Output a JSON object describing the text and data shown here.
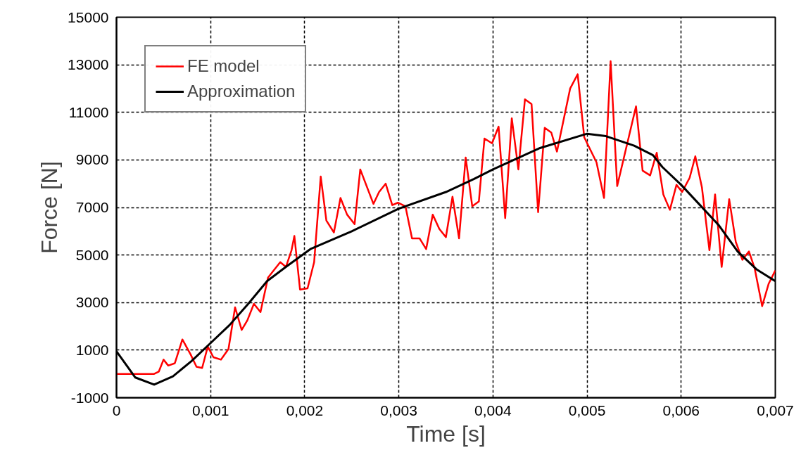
{
  "chart_data": {
    "type": "line",
    "xlabel": "Time [s]",
    "ylabel": "Force [N]",
    "xlim": [
      0,
      0.007
    ],
    "ylim": [
      -1000,
      15000
    ],
    "xticks": [
      0,
      {
        "value": 0.001,
        "label": "0,001"
      },
      {
        "value": 0.002,
        "label": "0,002"
      },
      {
        "value": 0.003,
        "label": "0,003"
      },
      {
        "value": 0.004,
        "label": "0,004"
      },
      {
        "value": 0.005,
        "label": "0,005"
      },
      {
        "value": 0.006,
        "label": "0,006"
      },
      {
        "value": 0.007,
        "label": "0,007"
      }
    ],
    "yticks": [
      -1000,
      1000,
      3000,
      5000,
      7000,
      9000,
      11000,
      13000,
      15000
    ],
    "grid": true,
    "legend": "top left",
    "line_style": "solid",
    "marker": "none",
    "series": [
      {
        "name": "FE model",
        "color": "#ff0000",
        "x": [
          0,
          0.0004,
          0.00045,
          0.0005,
          0.00055,
          0.00062,
          0.0007,
          0.00079,
          0.00085,
          0.00091,
          0.00097,
          0.00103,
          0.00111,
          0.00119,
          0.00126,
          0.00133,
          0.00139,
          0.00146,
          0.00153,
          0.00161,
          0.00174,
          0.0018,
          0.00186,
          0.00189,
          0.00195,
          0.00203,
          0.0021,
          0.00217,
          0.00223,
          0.00231,
          0.00238,
          0.00245,
          0.00253,
          0.00259,
          0.00273,
          0.00279,
          0.00286,
          0.00293,
          0.00299,
          0.00307,
          0.00314,
          0.00322,
          0.00329,
          0.00336,
          0.00343,
          0.0035,
          0.00357,
          0.00364,
          0.00371,
          0.00378,
          0.00385,
          0.00391,
          0.00399,
          0.00406,
          0.00413,
          0.0042,
          0.00427,
          0.00434,
          0.00441,
          0.00448,
          0.00455,
          0.00462,
          0.00468,
          0.00482,
          0.0049,
          0.00497,
          0.0051,
          0.00518,
          0.00525,
          0.00532,
          0.00552,
          0.00559,
          0.00567,
          0.00574,
          0.00581,
          0.00588,
          0.00595,
          0.00601,
          0.00609,
          0.00615,
          0.00622,
          0.0063,
          0.00636,
          0.00643,
          0.00651,
          0.00658,
          0.00665,
          0.00672,
          0.00678,
          0.00686,
          0.00693,
          0.007
        ],
        "values": [
          0,
          0,
          100,
          600,
          350,
          450,
          1450,
          800,
          300,
          250,
          1150,
          700,
          600,
          1050,
          2800,
          1850,
          2250,
          2950,
          2600,
          4050,
          4700,
          4500,
          5200,
          5800,
          3550,
          3600,
          4700,
          8300,
          6450,
          5950,
          7400,
          6700,
          6300,
          8600,
          7150,
          7650,
          8000,
          7100,
          7200,
          7050,
          5700,
          5700,
          5250,
          6700,
          6100,
          5750,
          7450,
          5700,
          9100,
          7050,
          7250,
          9900,
          9700,
          10400,
          6550,
          10750,
          8600,
          11550,
          11350,
          6800,
          10350,
          10150,
          9350,
          12000,
          12600,
          9950,
          8900,
          7400,
          13150,
          7900,
          11250,
          8550,
          8350,
          9300,
          7550,
          6900,
          7950,
          7650,
          8250,
          9150,
          7850,
          5200,
          7550,
          4500,
          7350,
          5550,
          4800,
          5150,
          4450,
          2850,
          3800,
          4350
        ]
      },
      {
        "name": "Approximation",
        "color": "#000000",
        "x": [
          0,
          0.0002,
          0.0004,
          0.0006,
          0.0008,
          0.001,
          0.0012,
          0.0014,
          0.0016,
          0.0018,
          0.00206,
          0.0025,
          0.003,
          0.0035,
          0.0038,
          0.004,
          0.0045,
          0.005,
          0.0052,
          0.0055,
          0.0057,
          0.0058,
          0.006,
          0.0062,
          0.0064,
          0.0066,
          0.0068,
          0.007
        ],
        "values": [
          950,
          -150,
          -450,
          -100,
          550,
          1300,
          2050,
          2950,
          3900,
          4500,
          5250,
          6000,
          6950,
          7650,
          8200,
          8600,
          9500,
          10100,
          10000,
          9600,
          9200,
          8700,
          7950,
          7100,
          6250,
          5150,
          4400,
          3900
        ]
      }
    ]
  }
}
